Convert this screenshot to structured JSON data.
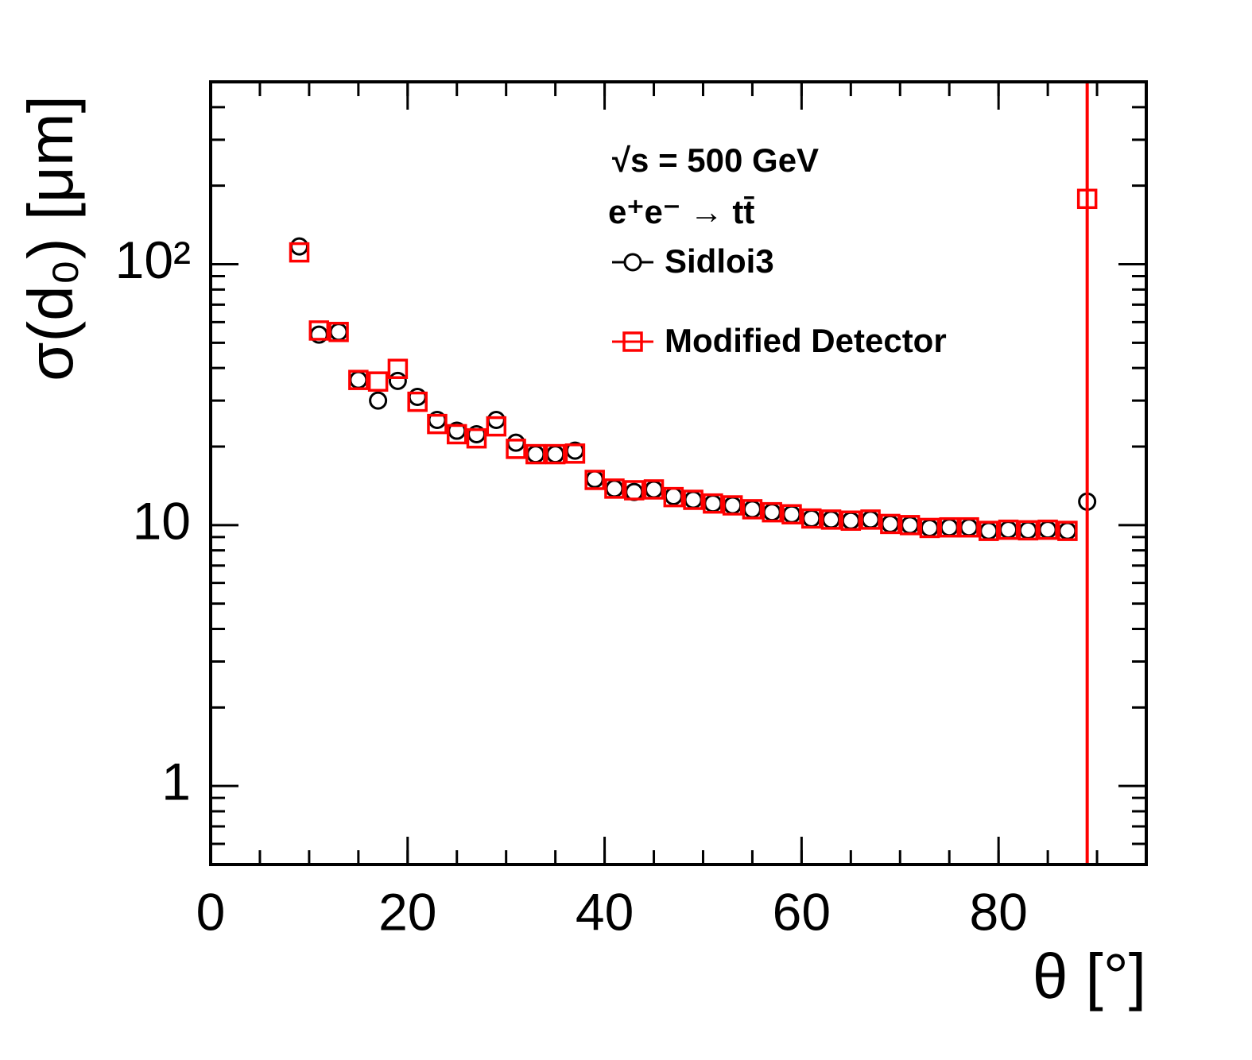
{
  "chart_data": {
    "type": "scatter",
    "annotations": [
      "√s = 500 GeV",
      "e⁺e⁻ → tt̄"
    ],
    "xlabel": "θ [°]",
    "ylabel": "σ(d₀) [μm]",
    "x": [
      9,
      11,
      13,
      15,
      17,
      19,
      21,
      23,
      25,
      27,
      29,
      31,
      33,
      35,
      37,
      39,
      41,
      43,
      45,
      47,
      49,
      51,
      53,
      55,
      57,
      59,
      61,
      63,
      65,
      67,
      69,
      71,
      73,
      75,
      77,
      79,
      81,
      83,
      85,
      87,
      89
    ],
    "series": [
      {
        "name": "Sidloi3",
        "color": "#000000",
        "marker": "circle",
        "values": [
          117,
          53.7,
          55,
          36,
          30,
          35.7,
          31,
          25.3,
          23,
          22.3,
          25.3,
          20.7,
          18.7,
          18.7,
          19.3,
          15.0,
          13.8,
          13.4,
          13.7,
          12.9,
          12.5,
          12.1,
          11.9,
          11.5,
          11.2,
          11.0,
          10.6,
          10.5,
          10.4,
          10.5,
          10.1,
          10.0,
          9.75,
          9.8,
          9.8,
          9.5,
          9.6,
          9.55,
          9.6,
          9.5,
          12.3
        ]
      },
      {
        "name": "Modified Detector",
        "color": "#ff0000",
        "marker": "square",
        "values": [
          111,
          55.7,
          55,
          36,
          35.5,
          39.7,
          29.7,
          24.4,
          22.3,
          21.5,
          23.9,
          19.6,
          18.7,
          18.7,
          18.8,
          14.9,
          13.8,
          13.6,
          13.7,
          12.8,
          12.5,
          12.1,
          11.9,
          11.5,
          11.2,
          11.0,
          10.6,
          10.5,
          10.4,
          10.5,
          10.1,
          10.0,
          9.75,
          9.8,
          9.8,
          9.5,
          9.6,
          9.55,
          9.6,
          9.5,
          178
        ],
        "errors": [
          null,
          null,
          null,
          null,
          null,
          null,
          null,
          null,
          null,
          null,
          null,
          null,
          null,
          null,
          null,
          null,
          null,
          null,
          null,
          null,
          null,
          null,
          null,
          null,
          null,
          null,
          null,
          null,
          null,
          null,
          null,
          null,
          null,
          null,
          null,
          null,
          null,
          null,
          null,
          null,
          400
        ]
      }
    ],
    "xlim": [
      0,
      95
    ],
    "xticks": [
      0,
      20,
      40,
      60,
      80
    ],
    "ylim": [
      0.5,
      500
    ],
    "ylog": true,
    "yticks": [
      1,
      10,
      {
        "value": 100,
        "label": "10²"
      }
    ]
  }
}
